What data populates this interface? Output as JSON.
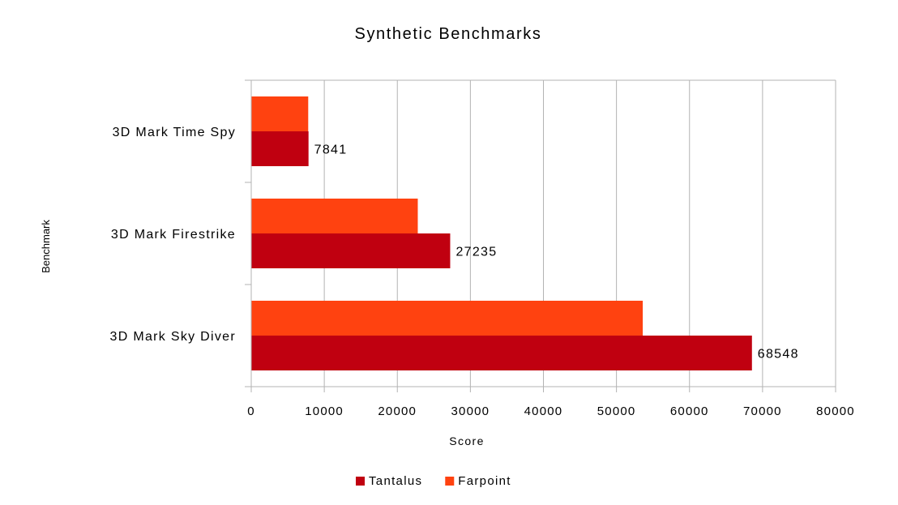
{
  "chart_data": {
    "type": "bar",
    "orientation": "horizontal",
    "title": "Synthetic Benchmarks",
    "xlabel": "Score",
    "ylabel": "Benchmark",
    "categories": [
      "3D Mark Time Spy",
      "3D Mark Firestrike",
      "3D Mark Sky Diver"
    ],
    "series": [
      {
        "name": "Tantalus",
        "values": [
          7841,
          27235,
          68548
        ],
        "color": "#c00010",
        "show_labels": true
      },
      {
        "name": "Farpoint",
        "values": [
          7800,
          22800,
          53600
        ],
        "color": "#ff4210",
        "show_labels": false
      }
    ],
    "xlim": [
      0,
      80000
    ],
    "xticks": [
      0,
      10000,
      20000,
      30000,
      40000,
      50000,
      60000,
      70000,
      80000
    ],
    "grid": true,
    "legend_position": "bottom-center"
  }
}
